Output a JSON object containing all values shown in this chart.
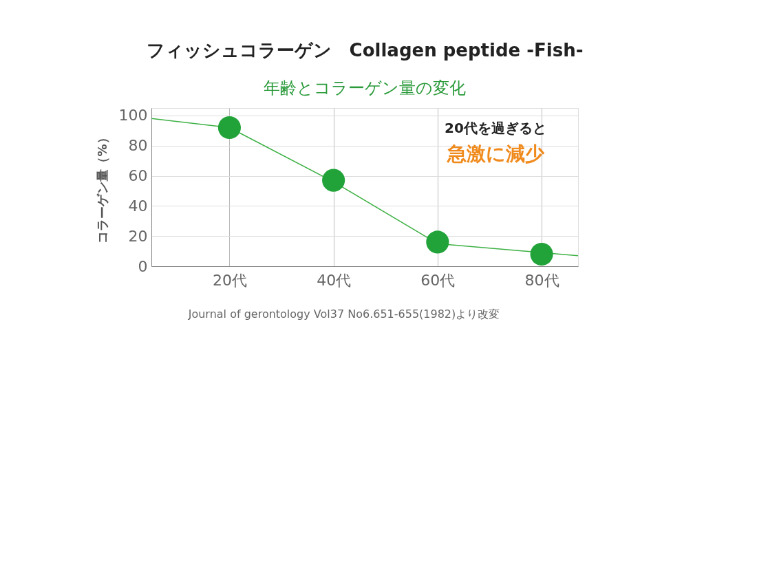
{
  "chart_data": {
    "type": "line",
    "title": "フィッシュコラーゲン　Collagen peptide -Fish-",
    "subtitle": "年齢とコラーゲン量の変化",
    "ylabel": "コラーゲン量（%）",
    "annotations": [
      "20代を過ぎると",
      "急激に減少",
      "Journal of gerontology Vol37 No6.651-655(1982)より改変"
    ],
    "series": [
      {
        "color": "#3cb043",
        "marker": "none",
        "x": [
          5,
          20,
          40,
          60,
          80,
          87
        ],
        "values": [
          98,
          92,
          56,
          15,
          9,
          7
        ]
      },
      {
        "type": "scatter",
        "color": "#22a33a",
        "marker": "circle",
        "x": [
          20,
          40,
          60,
          80
        ],
        "values": [
          92,
          57,
          16,
          8
        ]
      }
    ],
    "xlim": [
      5,
      87
    ],
    "xticks": [
      {
        "value": 20,
        "label": "20代"
      },
      {
        "value": 40,
        "label": "40代"
      },
      {
        "value": 60,
        "label": "60代"
      },
      {
        "value": 80,
        "label": "80代"
      }
    ],
    "ylim": [
      0,
      105
    ],
    "yticks": [
      0,
      20,
      40,
      60,
      80,
      100
    ],
    "grid": true
  }
}
